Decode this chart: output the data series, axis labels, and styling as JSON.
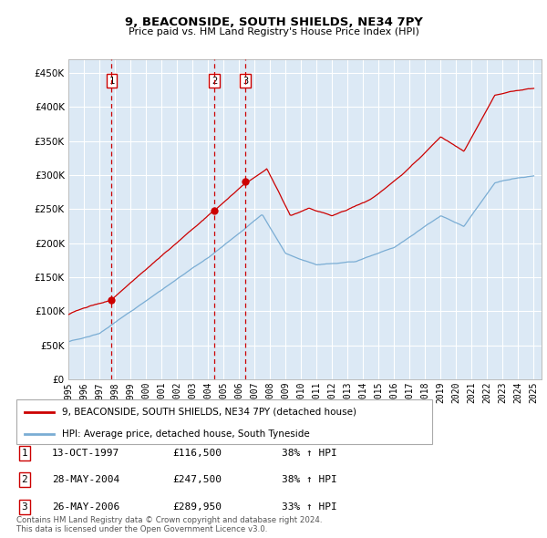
{
  "title": "9, BEACONSIDE, SOUTH SHIELDS, NE34 7PY",
  "subtitle": "Price paid vs. HM Land Registry's House Price Index (HPI)",
  "ytick_values": [
    0,
    50000,
    100000,
    150000,
    200000,
    250000,
    300000,
    350000,
    400000,
    450000
  ],
  "ylim": [
    0,
    470000
  ],
  "xlim_start": 1995.0,
  "xlim_end": 2025.5,
  "plot_bg_color": "#dce9f5",
  "line_color_red": "#cc0000",
  "line_color_blue": "#7aadd4",
  "grid_color": "#ffffff",
  "sale_dates": [
    1997.79,
    2004.41,
    2006.41
  ],
  "sale_prices": [
    116500,
    247500,
    289950
  ],
  "sale_labels": [
    "1",
    "2",
    "3"
  ],
  "legend_label_red": "9, BEACONSIDE, SOUTH SHIELDS, NE34 7PY (detached house)",
  "legend_label_blue": "HPI: Average price, detached house, South Tyneside",
  "table_rows": [
    {
      "num": "1",
      "date": "13-OCT-1997",
      "price": "£116,500",
      "hpi": "38% ↑ HPI"
    },
    {
      "num": "2",
      "date": "28-MAY-2004",
      "price": "£247,500",
      "hpi": "38% ↑ HPI"
    },
    {
      "num": "3",
      "date": "26-MAY-2006",
      "price": "£289,950",
      "hpi": "33% ↑ HPI"
    }
  ],
  "footer": "Contains HM Land Registry data © Crown copyright and database right 2024.\nThis data is licensed under the Open Government Licence v3.0.",
  "xtick_years": [
    1995,
    1996,
    1997,
    1998,
    1999,
    2000,
    2001,
    2002,
    2003,
    2004,
    2005,
    2006,
    2007,
    2008,
    2009,
    2010,
    2011,
    2012,
    2013,
    2014,
    2015,
    2016,
    2017,
    2018,
    2019,
    2020,
    2021,
    2022,
    2023,
    2024,
    2025
  ]
}
